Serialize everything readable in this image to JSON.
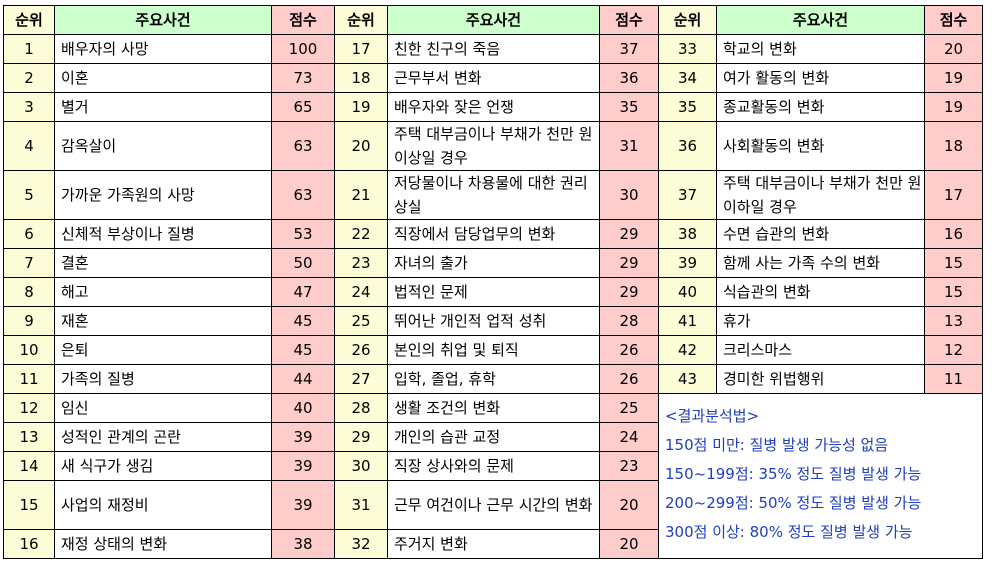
{
  "headers": {
    "rank": "순위",
    "event": "주요사건",
    "score": "점수"
  },
  "columns": [
    [
      {
        "rank": "1",
        "event": "배우자의 사망",
        "score": "100"
      },
      {
        "rank": "2",
        "event": "이혼",
        "score": "73"
      },
      {
        "rank": "3",
        "event": "별거",
        "score": "65"
      },
      {
        "rank": "4",
        "event": "감옥살이",
        "score": "63"
      },
      {
        "rank": "5",
        "event": "가까운 가족원의 사망",
        "score": "63"
      },
      {
        "rank": "6",
        "event": "신체적 부상이나 질병",
        "score": "53"
      },
      {
        "rank": "7",
        "event": "결혼",
        "score": "50"
      },
      {
        "rank": "8",
        "event": "해고",
        "score": "47"
      },
      {
        "rank": "9",
        "event": "재혼",
        "score": "45"
      },
      {
        "rank": "10",
        "event": "은퇴",
        "score": "45"
      },
      {
        "rank": "11",
        "event": "가족의 질병",
        "score": "44"
      },
      {
        "rank": "12",
        "event": "임신",
        "score": "40"
      },
      {
        "rank": "13",
        "event": "성적인 관계의 곤란",
        "score": "39"
      },
      {
        "rank": "14",
        "event": "새 식구가 생김",
        "score": "39"
      },
      {
        "rank": "15",
        "event": "사업의 재정비",
        "score": "39"
      },
      {
        "rank": "16",
        "event": "재정 상태의 변화",
        "score": "38"
      }
    ],
    [
      {
        "rank": "17",
        "event": "친한 친구의 죽음",
        "score": "37"
      },
      {
        "rank": "18",
        "event": "근무부서 변화",
        "score": "36"
      },
      {
        "rank": "19",
        "event": "배우자와 잦은 언쟁",
        "score": "35"
      },
      {
        "rank": "20",
        "event": "주택 대부금이나 부채가 천만 원 이상일 경우",
        "score": "31"
      },
      {
        "rank": "21",
        "event": "저당물이나 차용물에 대한 권리 상실",
        "score": "30"
      },
      {
        "rank": "22",
        "event": "직장에서 담당업무의 변화",
        "score": "29"
      },
      {
        "rank": "23",
        "event": "자녀의 출가",
        "score": "29"
      },
      {
        "rank": "24",
        "event": "법적인 문제",
        "score": "29"
      },
      {
        "rank": "25",
        "event": "뛰어난 개인적 업적 성취",
        "score": "28"
      },
      {
        "rank": "26",
        "event": "본인의 취업 및 퇴직",
        "score": "26"
      },
      {
        "rank": "27",
        "event": "입학, 졸업, 휴학",
        "score": "26"
      },
      {
        "rank": "28",
        "event": "생활 조건의 변화",
        "score": "25"
      },
      {
        "rank": "29",
        "event": "개인의 습관 교정",
        "score": "24"
      },
      {
        "rank": "30",
        "event": "직장 상사와의 문제",
        "score": "23"
      },
      {
        "rank": "31",
        "event": "근무 여건이나 근무 시간의 변화",
        "score": "20"
      },
      {
        "rank": "32",
        "event": "주거지 변화",
        "score": "20"
      }
    ],
    [
      {
        "rank": "33",
        "event": "학교의 변화",
        "score": "20"
      },
      {
        "rank": "34",
        "event": "여가 활동의 변화",
        "score": "19"
      },
      {
        "rank": "35",
        "event": "종교활동의 변화",
        "score": "19"
      },
      {
        "rank": "36",
        "event": "사회활동의 변화",
        "score": "18"
      },
      {
        "rank": "37",
        "event": "주택 대부금이나 부채가 천만 원 이하일 경우",
        "score": "17"
      },
      {
        "rank": "38",
        "event": "수면 습관의 변화",
        "score": "16"
      },
      {
        "rank": "39",
        "event": "함께 사는 가족 수의 변화",
        "score": "15"
      },
      {
        "rank": "40",
        "event": "식습관의 변화",
        "score": "15"
      },
      {
        "rank": "41",
        "event": "휴가",
        "score": "13"
      },
      {
        "rank": "42",
        "event": "크리스마스",
        "score": "12"
      },
      {
        "rank": "43",
        "event": "경미한 위법행위",
        "score": "11"
      }
    ]
  ],
  "notes": {
    "title": "<결과분석법>",
    "lines": [
      "150점 미만: 질병 발생 가능성 없음",
      "150~199점: 35% 정도 질병 발생 가능",
      "200~299점: 50% 정도 질병 발생 가능",
      "300점 이상: 80% 정도 질병 발생 가능"
    ]
  },
  "colors": {
    "rank_bg": "#fcfcd6",
    "event_header_bg": "#ccffcc",
    "score_bg": "#ffcccc",
    "note_text": "#1f3fbf"
  }
}
